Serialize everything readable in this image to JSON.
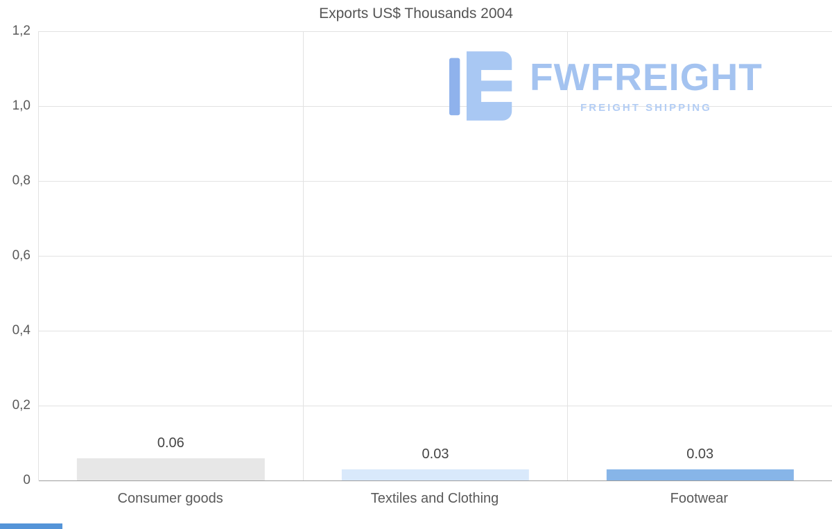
{
  "title_block": {
    "title": "Exports US$ Thousands 2004"
  },
  "watermark": {
    "name": "FWFREIGHT",
    "tagline": "FREIGHT SHIPPING",
    "color": "#a4c3f0"
  },
  "colors": {
    "gridline": "#e2e2e2",
    "axis_line": "#9d9d9d",
    "title_text": "#545454",
    "tick_text": "#595959",
    "bottom_accent": "#5494d8"
  },
  "chart_data": {
    "type": "bar",
    "title": "Exports US$ Thousands 2004",
    "categories": [
      "Consumer goods",
      "Textiles and Clothing",
      "Footwear"
    ],
    "values": [
      0.06,
      0.03,
      0.03
    ],
    "value_labels": [
      "0.06",
      "0.03",
      "0.03"
    ],
    "bar_colors": [
      "#e7e7e7",
      "#d9e9fb",
      "#87b5e8"
    ],
    "xlabel": "",
    "ylabel": "",
    "ylim": [
      0,
      1.2
    ],
    "ytick_values": [
      0,
      0.2,
      0.4,
      0.6,
      0.8,
      1.0,
      1.2
    ],
    "ytick_labels": [
      "0",
      "0,2",
      "0,4",
      "0,6",
      "0,8",
      "1,0",
      "1,2"
    ],
    "grid": "horizontal gridlines + vertical category separators",
    "legend": "none"
  }
}
